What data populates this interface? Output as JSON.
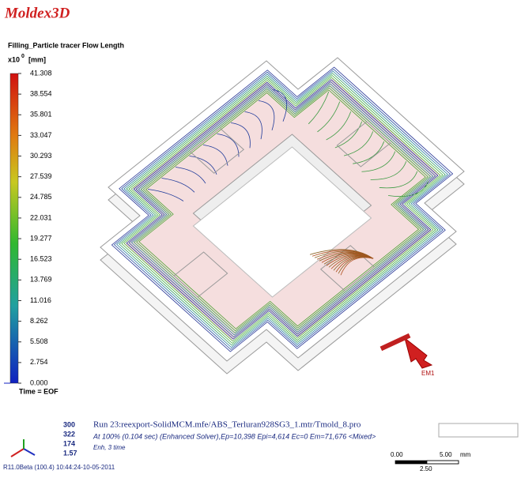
{
  "app": {
    "logo": "Moldex3D"
  },
  "legend": {
    "title": "Filling_Particle tracer Flow Length",
    "exponent_base": "x10",
    "exponent": "0",
    "unit": "[mm]",
    "labels": [
      "41.308",
      "38.554",
      "35.801",
      "33.047",
      "30.293",
      "27.539",
      "24.785",
      "22.031",
      "19.277",
      "16.523",
      "13.769",
      "11.016",
      "8.262",
      "5.508",
      "2.754",
      "0.000"
    ],
    "footer": "Time = EOF"
  },
  "model": {
    "gate_label": "EM1"
  },
  "info": {
    "counts": [
      "300",
      "322",
      "174",
      "1.57"
    ],
    "run": "Run 23:reexport-SolidMCM.mfe/ABS_Terluran928SG3_1.mtr/Tmold_8.pro",
    "status": "At 100% (0.104 sec) (Enhanced Solver),Ep=10,398 Epi=4,614 Ec=0 Em=71,676 <Mixed>",
    "mode": "Enh, 3 time",
    "version": "R11.0Beta (100.4) 10:44:24-10-05-2011"
  },
  "scale_bar": {
    "left": "0.00",
    "right": "5.00",
    "unit": "mm",
    "mid": "2.50"
  }
}
